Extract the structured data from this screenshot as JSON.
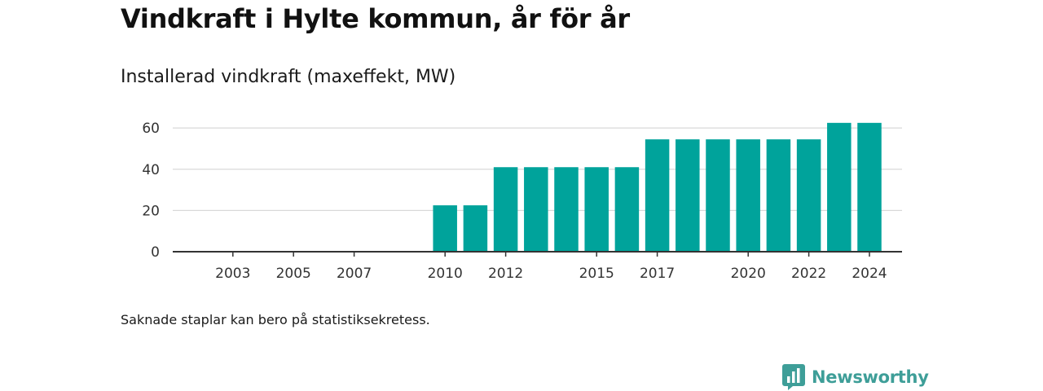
{
  "header": {
    "title": "Vindkraft i Hylte kommun, år för år",
    "subtitle": "Installerad vindkraft (maxeffekt, MW)"
  },
  "footnote": "Saknade staplar kan bero på statistiksekretess.",
  "brand": {
    "name": "Newsworthy",
    "color": "#3e9e98",
    "icon": "newsworthy-logo-icon"
  },
  "colors": {
    "bar": "#00a39b",
    "grid": "#d9d9d9",
    "axis": "#333333"
  },
  "chart_data": {
    "type": "bar",
    "title": "Installerad vindkraft (maxeffekt, MW)",
    "xlabel": "",
    "ylabel": "",
    "categories": [
      "2002",
      "2003",
      "2004",
      "2005",
      "2006",
      "2007",
      "2008",
      "2009",
      "2010",
      "2011",
      "2012",
      "2013",
      "2014",
      "2015",
      "2016",
      "2017",
      "2018",
      "2019",
      "2020",
      "2021",
      "2022",
      "2023",
      "2024"
    ],
    "values": [
      null,
      null,
      null,
      null,
      null,
      null,
      null,
      null,
      22.5,
      22.5,
      41,
      41,
      41,
      41,
      41,
      54.5,
      54.5,
      54.5,
      54.5,
      54.5,
      54.5,
      62.5,
      62.5
    ],
    "x_tick_labels": [
      "2003",
      "2005",
      "2007",
      "2010",
      "2012",
      "2015",
      "2017",
      "2020",
      "2022",
      "2024"
    ],
    "y_ticks": [
      0,
      20,
      40,
      60
    ],
    "ylim": [
      0,
      65
    ],
    "grid": true,
    "legend": "none"
  }
}
